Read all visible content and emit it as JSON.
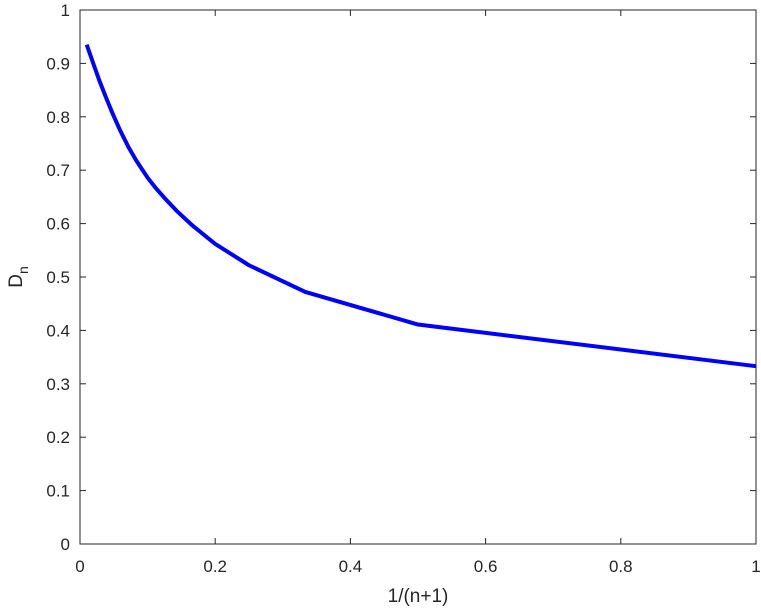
{
  "chart_data": {
    "type": "line",
    "title": "",
    "xlabel": "1/(n+1)",
    "ylabel": {
      "main": "D",
      "subscript": "n"
    },
    "xlim": [
      0,
      1
    ],
    "ylim": [
      0,
      1
    ],
    "xticks": [
      "0",
      "0.2",
      "0.4",
      "0.6",
      "0.8",
      "1"
    ],
    "yticks": [
      "0",
      "0.1",
      "0.2",
      "0.3",
      "0.4",
      "0.5",
      "0.6",
      "0.7",
      "0.8",
      "0.9",
      "1"
    ],
    "grid": false,
    "legend": "none",
    "series": [
      {
        "color": "#0000ff",
        "x": [
          0.0099,
          0.0196,
          0.0286,
          0.0385,
          0.0476,
          0.0588,
          0.0714,
          0.0833,
          0.1,
          0.1111,
          0.125,
          0.1429,
          0.1667,
          0.2,
          0.25,
          0.3333,
          0.5,
          1.0
        ],
        "y": [
          0.935,
          0.9,
          0.868,
          0.836,
          0.808,
          0.776,
          0.744,
          0.718,
          0.686,
          0.668,
          0.648,
          0.624,
          0.596,
          0.562,
          0.522,
          0.472,
          0.411,
          0.333
        ]
      }
    ]
  }
}
